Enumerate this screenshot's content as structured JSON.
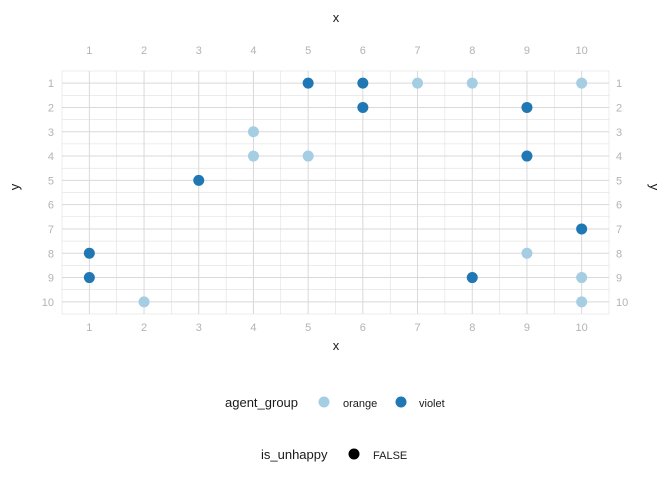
{
  "chart_data": {
    "type": "scatter",
    "x_title": "x",
    "y_title": "y",
    "x_ticks": [
      "1",
      "2",
      "3",
      "4",
      "5",
      "6",
      "7",
      "8",
      "9",
      "10"
    ],
    "y_ticks": [
      "1",
      "2",
      "3",
      "4",
      "5",
      "6",
      "7",
      "8",
      "9",
      "10"
    ],
    "xlim": [
      0.5,
      10.5
    ],
    "ylim": [
      0.5,
      10.5
    ],
    "y_reversed": true,
    "axes_duplicated": true,
    "grid": true,
    "legend_position": "bottom",
    "colors": {
      "orange": "#a6cee3",
      "violet": "#1f78b4",
      "grid": "#d9d9d9"
    },
    "series": [
      {
        "name": "orange",
        "color": "#a6cee3",
        "points": [
          [
            7,
            1
          ],
          [
            8,
            1
          ],
          [
            10,
            1
          ],
          [
            4,
            3
          ],
          [
            4,
            4
          ],
          [
            5,
            4
          ],
          [
            9,
            8
          ],
          [
            10,
            9
          ],
          [
            2,
            10
          ],
          [
            10,
            10
          ]
        ]
      },
      {
        "name": "violet",
        "color": "#1f78b4",
        "points": [
          [
            5,
            1
          ],
          [
            6,
            1
          ],
          [
            6,
            2
          ],
          [
            9,
            2
          ],
          [
            9,
            4
          ],
          [
            3,
            5
          ],
          [
            10,
            7
          ],
          [
            1,
            8
          ],
          [
            1,
            9
          ],
          [
            8,
            9
          ]
        ]
      }
    ],
    "legends": [
      {
        "title": "agent_group",
        "items": [
          {
            "label": "orange",
            "color": "#a6cee3"
          },
          {
            "label": "violet",
            "color": "#1f78b4"
          }
        ]
      },
      {
        "title": "is_unhappy",
        "items": [
          {
            "label": "FALSE",
            "color": "#000000"
          }
        ]
      }
    ]
  }
}
